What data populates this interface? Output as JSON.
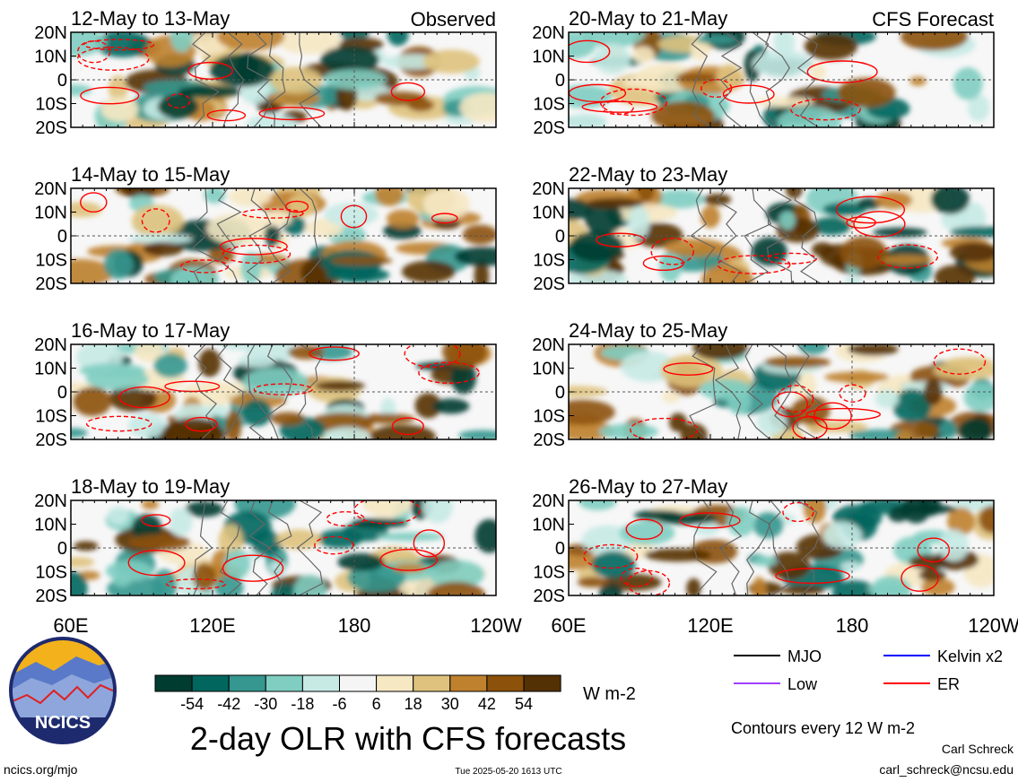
{
  "header_left": "Observed",
  "header_right": "CFS Forecast",
  "chart_data": {
    "type": "heatmap",
    "title": "2-day OLR with CFS forecasts",
    "lat_ticks": [
      "20N",
      "10N",
      "0",
      "10S",
      "20S"
    ],
    "lon_ticks": [
      "60E",
      "120E",
      "180",
      "120W"
    ],
    "panels": [
      {
        "label": "12-May to 13-May"
      },
      {
        "label": "14-May to 15-May"
      },
      {
        "label": "16-May to 17-May"
      },
      {
        "label": "18-May to 19-May"
      },
      {
        "label": "20-May to 21-May"
      },
      {
        "label": "22-May to 23-May"
      },
      {
        "label": "24-May to 25-May"
      },
      {
        "label": "26-May to 27-May"
      }
    ],
    "colorbar": {
      "ticks": [
        "-54",
        "-42",
        "-30",
        "-18",
        "-6",
        "6",
        "18",
        "30",
        "42",
        "54"
      ],
      "colors": [
        "#003c30",
        "#01665e",
        "#35978f",
        "#80cdc1",
        "#c7eae5",
        "#f5f5f5",
        "#f6e8c3",
        "#dfc27d",
        "#bf812d",
        "#8c510a",
        "#543005"
      ],
      "units": "W m-2"
    },
    "legend": [
      {
        "label": "MJO",
        "color": "#000000"
      },
      {
        "label": "Kelvin x2",
        "color": "#0000ff"
      },
      {
        "label": "Low",
        "color": "#a040ff"
      },
      {
        "label": "ER",
        "color": "#ff0000"
      }
    ],
    "contour_note": "Contours every 12 W m-2"
  },
  "footer": {
    "logo_text": "NCICS",
    "url": "ncics.org/mjo",
    "timestamp": "Tue 2025-05-20 1613 UTC",
    "author": "Carl Schreck",
    "email": "carl_schreck@ncsu.edu"
  }
}
